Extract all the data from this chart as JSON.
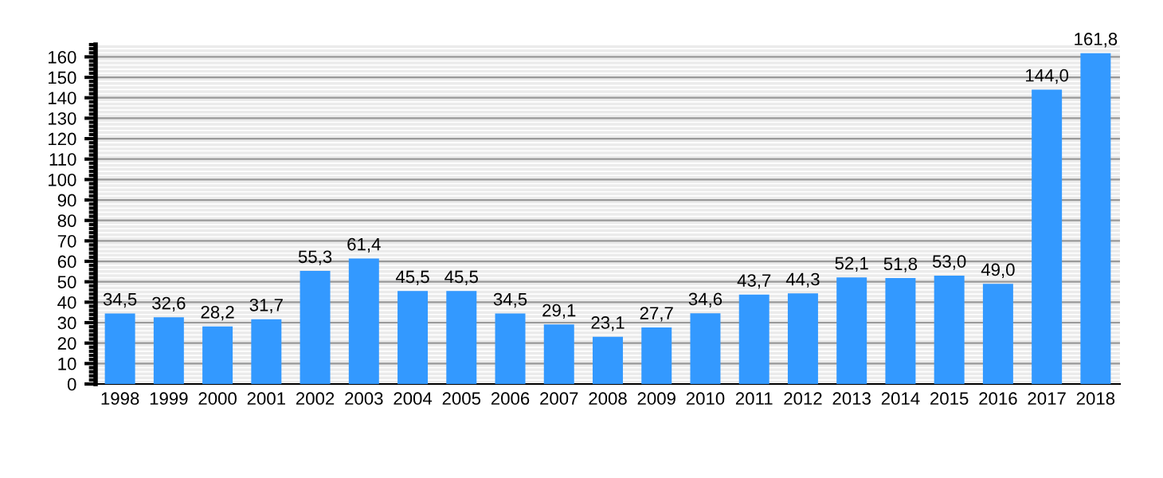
{
  "chart_data": {
    "type": "bar",
    "categories": [
      "1998",
      "1999",
      "2000",
      "2001",
      "2002",
      "2003",
      "2004",
      "2005",
      "2006",
      "2007",
      "2008",
      "2009",
      "2010",
      "2011",
      "2012",
      "2013",
      "2014",
      "2015",
      "2016",
      "2017",
      "2018"
    ],
    "values": [
      34.5,
      32.6,
      28.2,
      31.7,
      55.3,
      61.4,
      45.5,
      45.5,
      34.5,
      29.1,
      23.1,
      27.7,
      34.6,
      43.7,
      44.3,
      52.1,
      51.8,
      53.0,
      49.0,
      144.0,
      161.8
    ],
    "value_labels": [
      "34,5",
      "32,6",
      "28,2",
      "31,7",
      "55,3",
      "61,4",
      "45,5",
      "45,5",
      "34,5",
      "29,1",
      "23,1",
      "27,7",
      "34,6",
      "43,7",
      "44,3",
      "52,1",
      "51,8",
      "53,0",
      "49,0",
      "144,0",
      "161,8"
    ],
    "color": "#3399ff",
    "ylim": [
      0,
      166
    ],
    "yticks": [
      0,
      10,
      20,
      30,
      40,
      50,
      60,
      70,
      80,
      90,
      100,
      110,
      120,
      130,
      140,
      150,
      160
    ],
    "grid": "y"
  }
}
